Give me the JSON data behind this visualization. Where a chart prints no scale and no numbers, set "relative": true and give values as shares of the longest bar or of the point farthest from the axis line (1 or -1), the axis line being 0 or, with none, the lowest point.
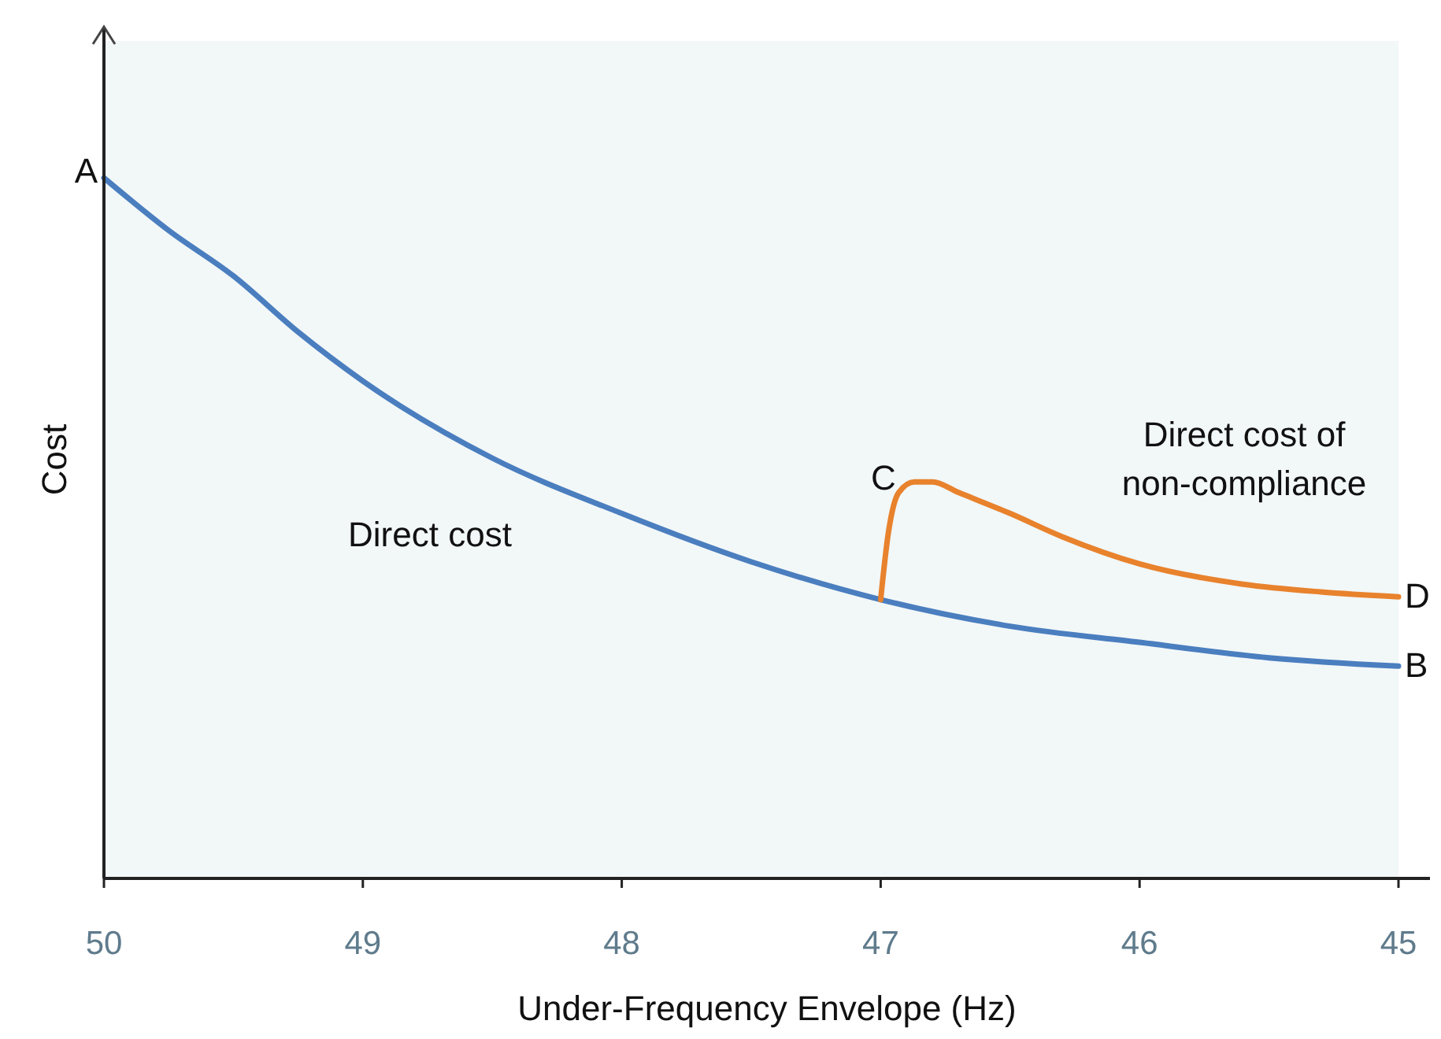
{
  "chart_data": {
    "type": "line",
    "relative": true,
    "xlabel": "Under-Frequency Envelope (Hz)",
    "ylabel": "Cost",
    "xlim": [
      50,
      45
    ],
    "xticks": [
      50,
      49,
      48,
      47,
      46,
      45
    ],
    "grid": false,
    "line_style": "solid",
    "series": [
      {
        "color": "#4a7ebf",
        "x": [
          50,
          49.75,
          49.5,
          49.25,
          49,
          48.5,
          48,
          47.5,
          47,
          46.5,
          46,
          45.5,
          45
        ],
        "values": [
          1,
          0.925,
          0.86,
          0.78,
          0.71,
          0.6,
          0.521,
          0.452,
          0.398,
          0.36,
          0.337,
          0.315,
          0.303
        ]
      },
      {
        "color": "#e8822c",
        "x": [
          47,
          46.97,
          46.93,
          46.87,
          46.8,
          46.7,
          46.5,
          46.3,
          46,
          45.6,
          45.3,
          45
        ],
        "values": [
          0.398,
          0.494,
          0.551,
          0.566,
          0.566,
          0.551,
          0.521,
          0.488,
          0.449,
          0.42,
          0.409,
          0.402
        ]
      }
    ],
    "annotations": [
      "A",
      "B",
      "D",
      "C",
      "Direct cost",
      "Direct cost of\nnon-compliance"
    ]
  }
}
